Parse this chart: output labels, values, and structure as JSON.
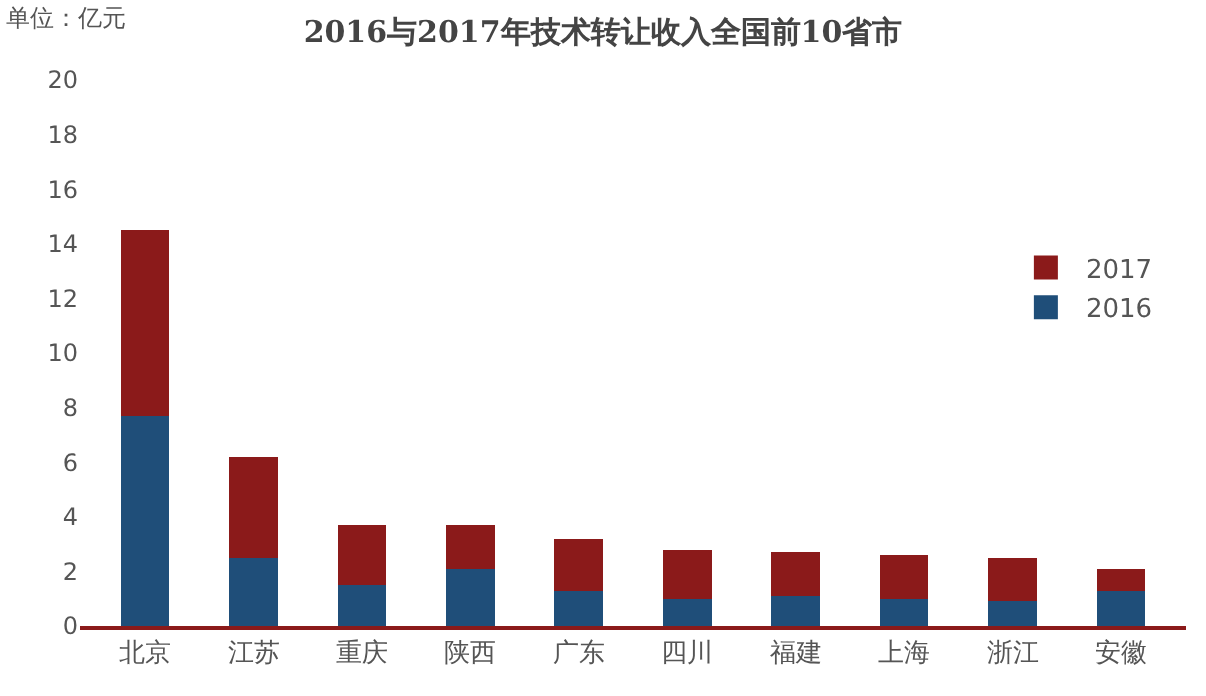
{
  "chart_data": {
    "type": "bar",
    "title": "2016与2017年技术转让收入全国前10省市",
    "annotations": [
      "单位：亿元"
    ],
    "categories": [
      "北京",
      "江苏",
      "重庆",
      "陕西",
      "广东",
      "四川",
      "福建",
      "上海",
      "浙江",
      "安徽"
    ],
    "stacked": true,
    "series": [
      {
        "name": "2016",
        "color": "#1f4e79",
        "values": [
          7.7,
          2.5,
          1.5,
          2.1,
          1.3,
          1.0,
          1.1,
          1.0,
          0.9,
          1.3
        ]
      },
      {
        "name": "2017",
        "color": "#8b1a1a",
        "values": [
          6.8,
          3.7,
          2.2,
          1.6,
          1.9,
          1.8,
          1.6,
          1.6,
          1.6,
          0.8
        ]
      }
    ],
    "ylim": [
      0,
      20
    ],
    "yticks": [
      0,
      2,
      4,
      6,
      8,
      10,
      12,
      14,
      16,
      18,
      20
    ],
    "grid": false,
    "legend": "right"
  }
}
